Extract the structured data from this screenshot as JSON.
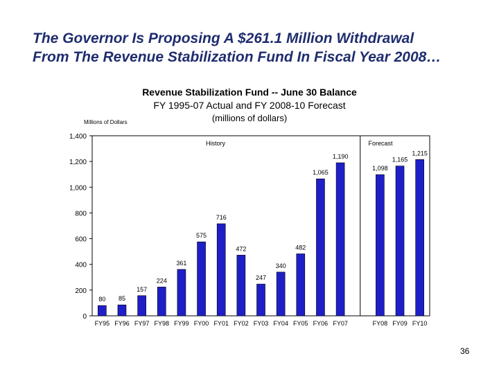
{
  "slide": {
    "title_line1": "The Governor Is Proposing A $261.1 Million Withdrawal",
    "title_line2": "From The Revenue Stabilization Fund In Fiscal Year 2008…",
    "page_number": "36"
  },
  "colors": {
    "title": "#1f2d6e",
    "bar": "#1f1fc8",
    "bar_edge": "#000000"
  },
  "chart_data": {
    "type": "bar",
    "title": "Revenue Stabilization Fund -- June 30 Balance",
    "subtitle": "FY 1995-07 Actual and FY 2008-10 Forecast",
    "units": "(millions of dollars)",
    "ylabel": "Millions of Dollars",
    "xlabel": "",
    "ylim": [
      0,
      1400
    ],
    "yticks": [
      0,
      200,
      400,
      600,
      800,
      1000,
      1200,
      1400
    ],
    "ytick_labels": [
      "0",
      "200",
      "400",
      "600",
      "800",
      "1,000",
      "1,200",
      "1,400"
    ],
    "grid": false,
    "section_labels": [
      "History",
      "Forecast"
    ],
    "categories": [
      "FY95",
      "FY96",
      "FY97",
      "FY98",
      "FY99",
      "FY00",
      "FY01",
      "FY02",
      "FY03",
      "FY04",
      "FY05",
      "FY06",
      "FY07",
      "",
      "FY08",
      "FY09",
      "FY10"
    ],
    "values": [
      80,
      85,
      157,
      224,
      361,
      575,
      716,
      472,
      247,
      340,
      482,
      1065,
      1190,
      null,
      1098,
      1165,
      1215
    ],
    "value_labels": [
      "80",
      "85",
      "157",
      "224",
      "361",
      "575",
      "716",
      "472",
      "247",
      "340",
      "482",
      "1,065",
      "1,190",
      "",
      "1,098",
      "1,165",
      "1,215"
    ]
  }
}
